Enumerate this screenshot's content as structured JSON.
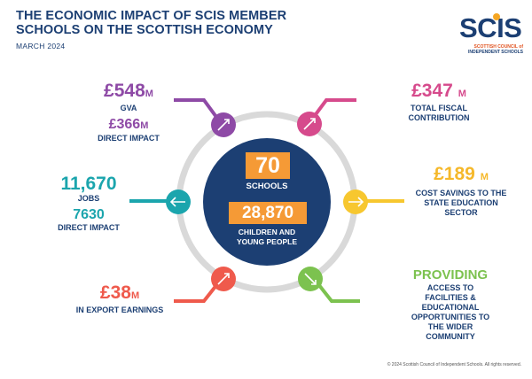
{
  "header": {
    "title": "THE ECONOMIC IMPACT OF SCIS MEMBER SCHOOLS ON THE SCOTTISH ECONOMY",
    "date": "MARCH 2024"
  },
  "logo": {
    "text": "SCIS",
    "sub_line1": "SCOTTISH COUNCIL of",
    "sub_line2": "INDEPENDENT SCHOOLS"
  },
  "center": {
    "schools_value": "70",
    "schools_label": "SCHOOLS",
    "pupils_value": "28,870",
    "pupils_label": "CHILDREN AND YOUNG PEOPLE"
  },
  "stats": {
    "gva": {
      "value": "£548",
      "unit": "M",
      "label": "GVA",
      "sub_value": "£366",
      "sub_unit": "M",
      "sub_label": "DIRECT IMPACT"
    },
    "fiscal": {
      "value": "£347",
      "unit": "M",
      "label": "TOTAL FISCAL CONTRIBUTION"
    },
    "jobs": {
      "value": "11,670",
      "label": "JOBS",
      "sub_value": "7630",
      "sub_label": "DIRECT IMPACT"
    },
    "savings": {
      "value": "£189",
      "unit": "M",
      "label": "COST SAVINGS TO THE STATE EDUCATION SECTOR"
    },
    "export": {
      "value": "£38",
      "unit": "M",
      "label": "IN EXPORT EARNINGS"
    },
    "providing": {
      "value": "PROVIDING",
      "label": "ACCESS TO FACILITIES & EDUCATIONAL OPPORTUNITIES TO THE WIDER COMMUNITY"
    }
  },
  "colors": {
    "navy": "#1c3f73",
    "purple": "#8e4aa6",
    "pink": "#d64a8c",
    "teal": "#1ba5ad",
    "yellow": "#f7c72f",
    "red": "#ef5a4c",
    "green": "#7cc24f",
    "orange": "#f59a36",
    "ring": "#d9d9d9"
  },
  "footer": {
    "copyright": "© 2024 Scottish Council of Independent Schools. All rights reserved."
  }
}
